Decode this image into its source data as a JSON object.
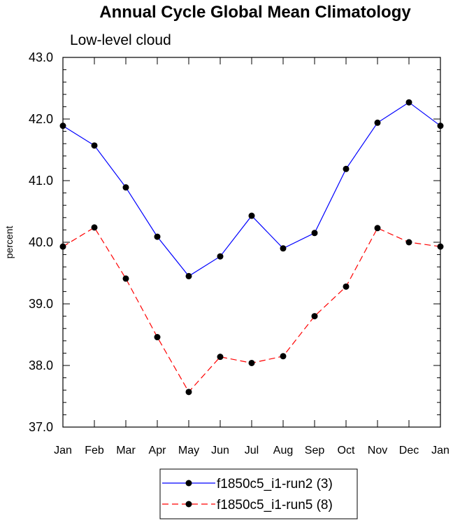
{
  "chart_data": {
    "type": "line",
    "title": "Annual Cycle Global Mean Climatology",
    "subtitle": "Low-level cloud",
    "xlabel": "",
    "ylabel": "percent",
    "categories": [
      "Jan",
      "Feb",
      "Mar",
      "Apr",
      "May",
      "Jun",
      "Jul",
      "Aug",
      "Sep",
      "Oct",
      "Nov",
      "Dec",
      "Jan"
    ],
    "ylim": [
      37.0,
      43.0
    ],
    "yticks": [
      "37.0",
      "38.0",
      "39.0",
      "40.0",
      "41.0",
      "42.0",
      "43.0"
    ],
    "grid": false,
    "legend_position": "bottom-center",
    "series": [
      {
        "name": "f1850c5_i1-run2 (3)",
        "color": "#0000ff",
        "dash": "solid",
        "values": [
          41.89,
          41.57,
          40.89,
          40.09,
          39.45,
          39.77,
          40.43,
          39.9,
          40.15,
          41.19,
          41.94,
          42.27,
          41.89
        ]
      },
      {
        "name": "f1850c5_i1-run5 (8)",
        "color": "#ff0000",
        "dash": "dashed",
        "values": [
          39.93,
          40.24,
          39.41,
          38.46,
          37.57,
          38.14,
          38.04,
          38.15,
          38.8,
          39.28,
          40.23,
          40.0,
          39.93
        ]
      }
    ]
  }
}
